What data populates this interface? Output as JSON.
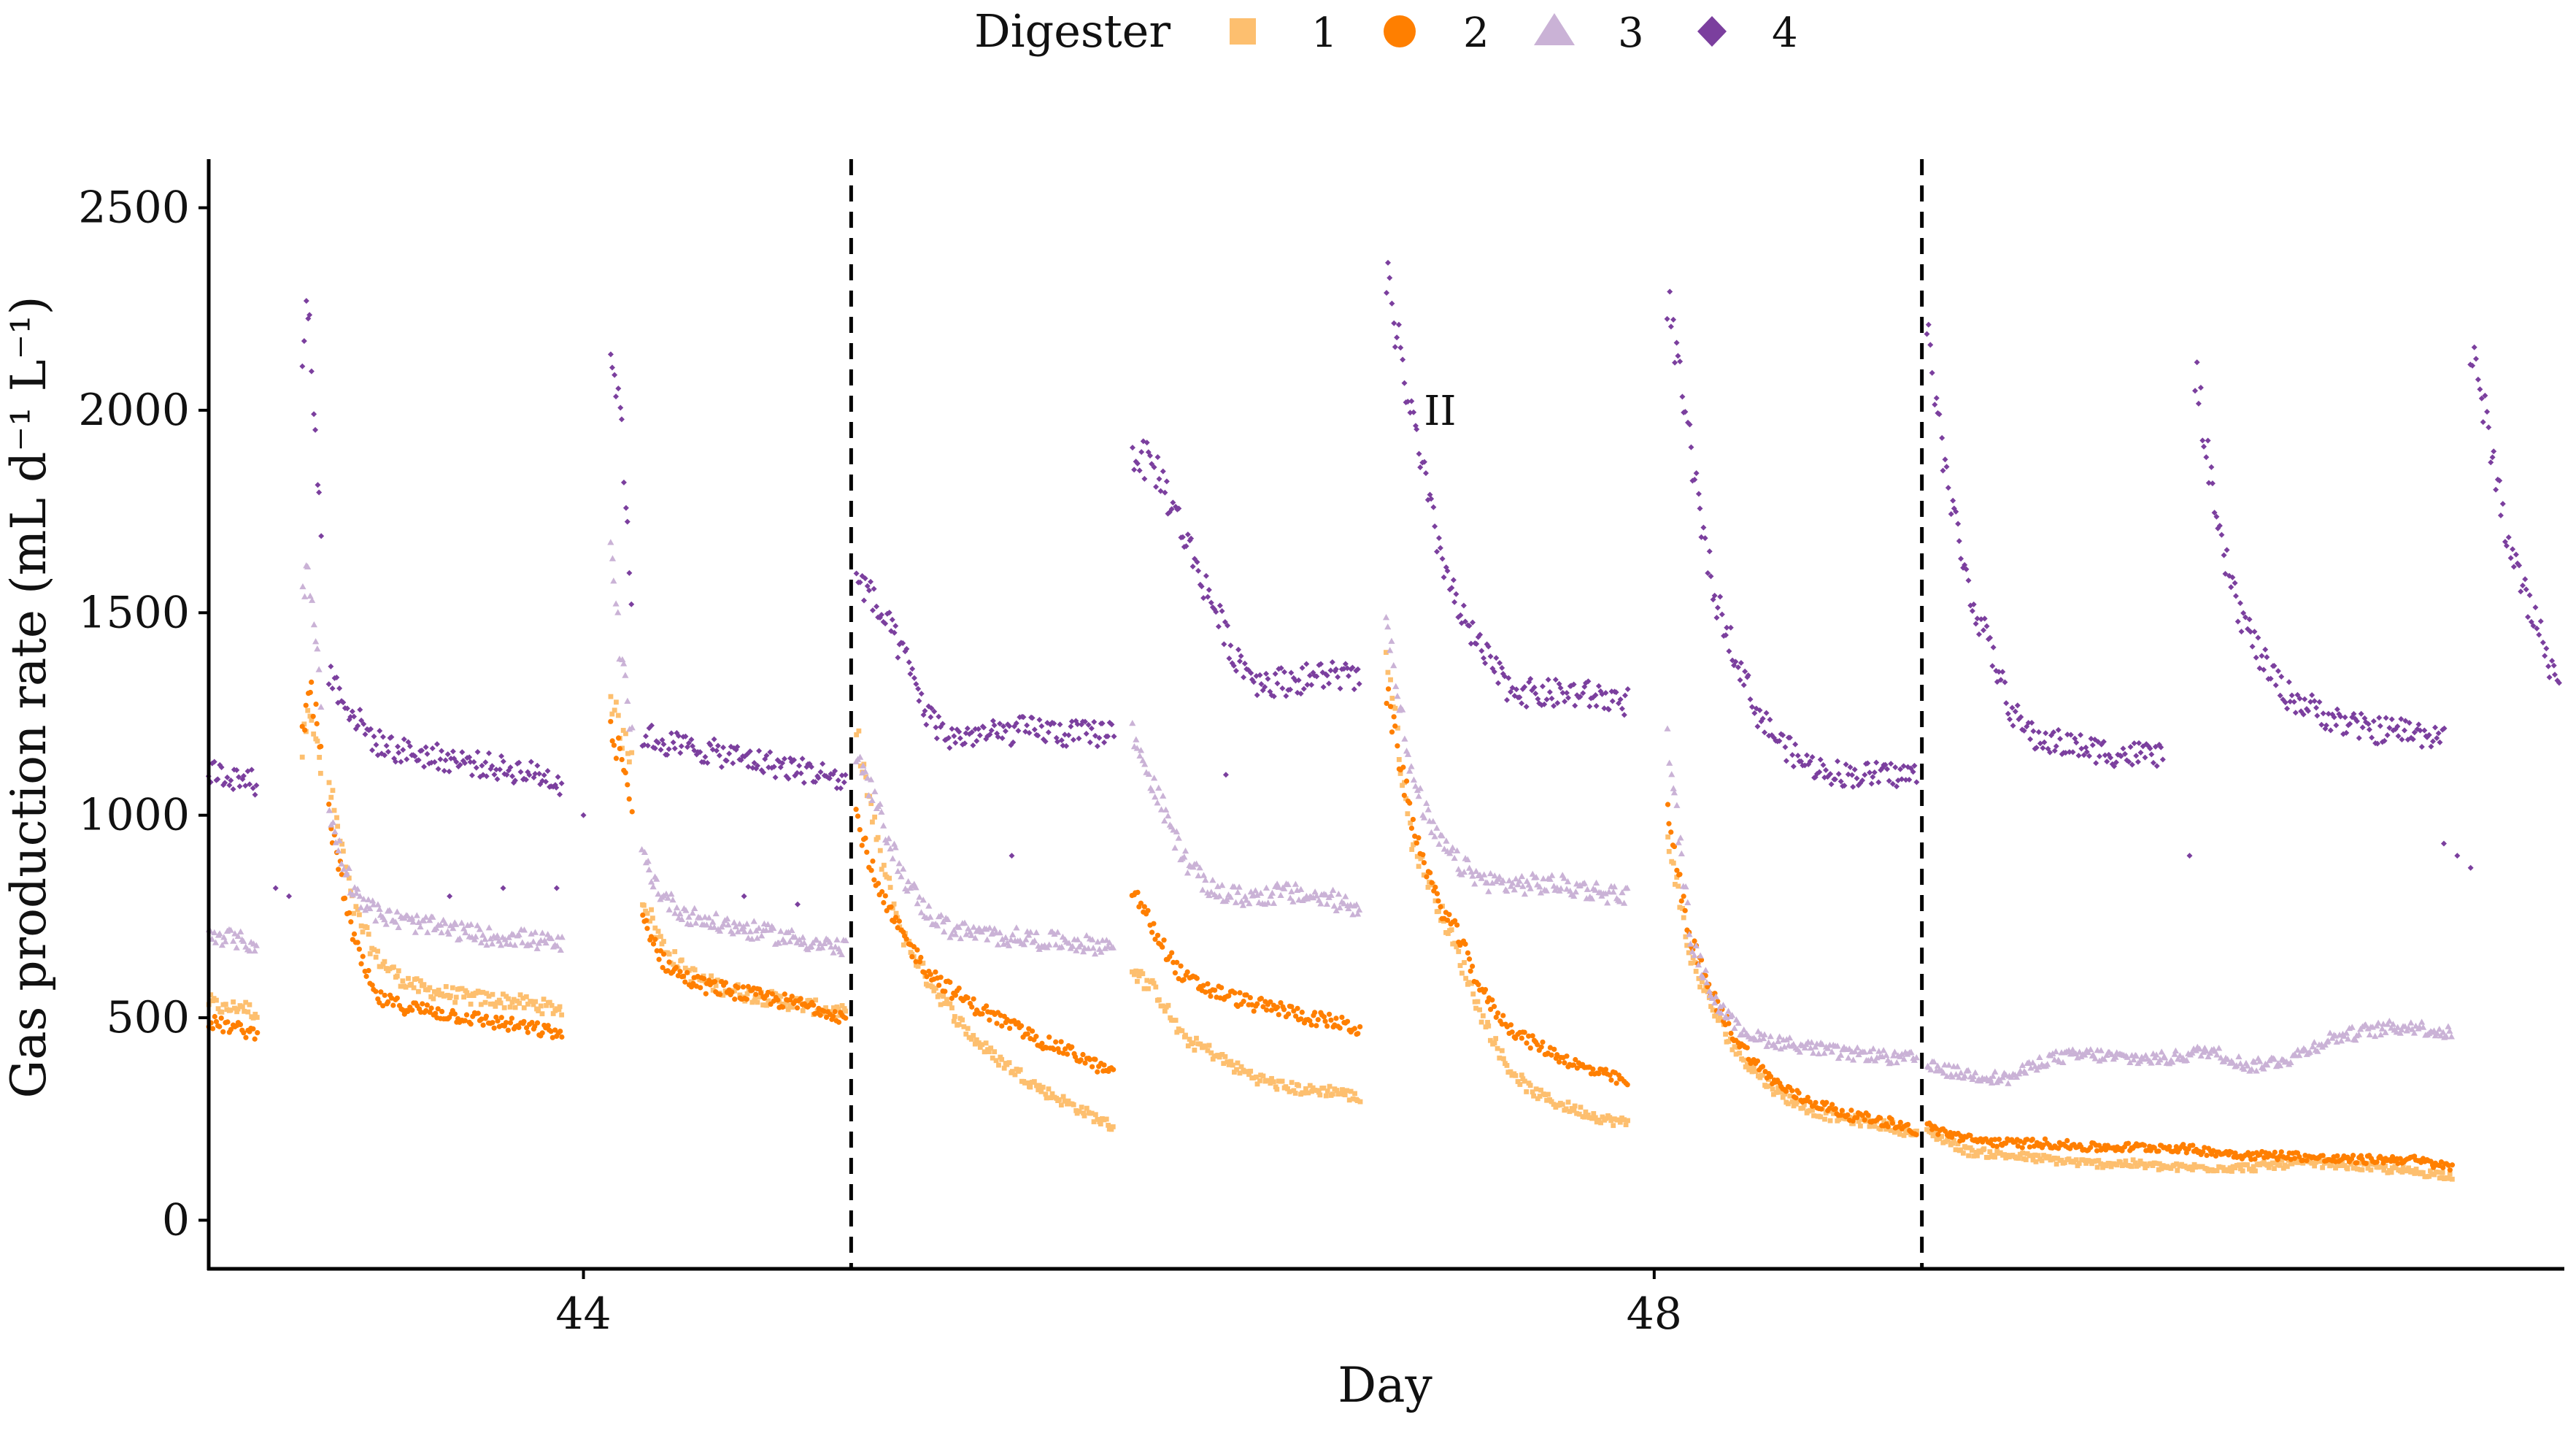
{
  "chart_data": {
    "type": "scatter",
    "title": "",
    "xlabel": "Day",
    "ylabel": "Gas production rate (mL d⁻¹ L⁻¹)",
    "xlim": [
      42.6,
      51.4
    ],
    "ylim": [
      -120,
      2620
    ],
    "xticks": [
      44,
      48
    ],
    "yticks": [
      0,
      500,
      1000,
      1500,
      2000,
      2500
    ],
    "grid": false,
    "legend": {
      "title": "Digester",
      "position": "top"
    },
    "vlines": [
      45.0,
      49.0
    ],
    "annotations": [
      {
        "text": "II",
        "x": 47.2,
        "y": 2000
      }
    ],
    "series": [
      {
        "name": "1",
        "marker": "square",
        "color": "#FDBF6F",
        "segments": [
          {
            "start": 42.6,
            "end": 42.78,
            "values": [
              540,
              520,
              530,
              510
            ]
          },
          {
            "start": 42.95,
            "end": 43.02,
            "values": [
              1150,
              1300,
              1200,
              1100
            ]
          },
          {
            "start": 43.05,
            "end": 43.92,
            "values": [
              1080,
              780,
              650,
              600,
              570,
              560,
              550,
              545,
              540,
              530,
              520
            ]
          },
          {
            "start": 44.1,
            "end": 44.18,
            "values": [
              1300,
              1200,
              1150
            ]
          },
          {
            "start": 44.22,
            "end": 44.98,
            "values": [
              800,
              680,
              620,
              590,
              575,
              560,
              550,
              540,
              530,
              520,
              510
            ]
          },
          {
            "start": 45.02,
            "end": 45.98,
            "values": [
              1200,
              900,
              700,
              600,
              520,
              450,
              400,
              360,
              320,
              290,
              260,
              230
            ]
          },
          {
            "start": 46.05,
            "end": 46.9,
            "values": [
              620,
              560,
              450,
              420,
              380,
              350,
              330,
              320,
              320,
              300
            ]
          },
          {
            "start": 47.0,
            "end": 47.9,
            "values": [
              1400,
              950,
              800,
              650,
              500,
              380,
              320,
              290,
              270,
              250,
              240
            ]
          },
          {
            "start": 48.05,
            "end": 48.98,
            "values": [
              950,
              650,
              520,
              420,
              360,
              310,
              280,
              260,
              250,
              240,
              230,
              210
            ]
          },
          {
            "start": 49.02,
            "end": 50.98,
            "values": [
              220,
              170,
              160,
              150,
              140,
              140,
              130,
              130,
              130,
              140,
              140,
              130,
              120,
              110
            ]
          }
        ]
      },
      {
        "name": "2",
        "marker": "circle",
        "color": "#FF7F00",
        "segments": [
          {
            "start": 42.6,
            "end": 42.78,
            "values": [
              490,
              480,
              470,
              460
            ]
          },
          {
            "start": 42.95,
            "end": 43.02,
            "values": [
              1200,
              1350,
              1250,
              1150
            ]
          },
          {
            "start": 43.05,
            "end": 43.92,
            "values": [
              1000,
              700,
              550,
              530,
              520,
              510,
              500,
              490,
              480,
              470,
              460
            ]
          },
          {
            "start": 44.1,
            "end": 44.18,
            "values": [
              1200,
              1150,
              1000
            ]
          },
          {
            "start": 44.22,
            "end": 44.98,
            "values": [
              750,
              640,
              600,
              580,
              570,
              560,
              550,
              540,
              530,
              520,
              500
            ]
          },
          {
            "start": 45.02,
            "end": 45.98,
            "values": [
              1000,
              800,
              700,
              620,
              570,
              530,
              500,
              470,
              440,
              420,
              390,
              360
            ]
          },
          {
            "start": 46.05,
            "end": 46.9,
            "values": [
              820,
              700,
              600,
              570,
              550,
              530,
              520,
              500,
              490,
              470
            ]
          },
          {
            "start": 47.0,
            "end": 47.9,
            "values": [
              1300,
              1000,
              800,
              700,
              560,
              480,
              440,
              410,
              380,
              360,
              340
            ]
          },
          {
            "start": 48.05,
            "end": 48.98,
            "values": [
              1000,
              700,
              550,
              450,
              380,
              330,
              300,
              280,
              260,
              250,
              240,
              220
            ]
          },
          {
            "start": 49.02,
            "end": 50.98,
            "values": [
              230,
              200,
              190,
              190,
              180,
              180,
              180,
              170,
              160,
              160,
              150,
              150,
              150,
              130
            ]
          }
        ]
      },
      {
        "name": "3",
        "marker": "triangle",
        "color": "#CAB2D6",
        "segments": [
          {
            "start": 42.6,
            "end": 42.78,
            "values": [
              710,
              700,
              690,
              680
            ]
          },
          {
            "start": 42.95,
            "end": 43.02,
            "values": [
              1550,
              1600,
              1450,
              1300
            ]
          },
          {
            "start": 43.05,
            "end": 43.92,
            "values": [
              1000,
              820,
              760,
              740,
              730,
              720,
              710,
              700,
              700,
              690,
              680
            ]
          },
          {
            "start": 44.1,
            "end": 44.18,
            "values": [
              1650,
              1400,
              1200
            ]
          },
          {
            "start": 44.22,
            "end": 44.98,
            "values": [
              900,
              800,
              760,
              740,
              730,
              720,
              710,
              700,
              690,
              680,
              670
            ]
          },
          {
            "start": 45.02,
            "end": 45.98,
            "values": [
              1150,
              1000,
              850,
              760,
              720,
              710,
              700,
              700,
              690,
              690,
              680,
              680
            ]
          },
          {
            "start": 46.05,
            "end": 46.9,
            "values": [
              1200,
              1050,
              900,
              820,
              800,
              800,
              810,
              800,
              790,
              770
            ]
          },
          {
            "start": 47.0,
            "end": 47.9,
            "values": [
              1500,
              1100,
              950,
              880,
              840,
              830,
              830,
              830,
              820,
              810,
              800
            ]
          },
          {
            "start": 48.05,
            "end": 48.98,
            "values": [
              1200,
              700,
              550,
              480,
              450,
              440,
              430,
              420,
              410,
              410,
              400,
              400
            ]
          },
          {
            "start": 49.02,
            "end": 50.98,
            "values": [
              380,
              360,
              350,
              400,
              410,
              400,
              400,
              420,
              380,
              400,
              450,
              470,
              480,
              460
            ]
          }
        ]
      },
      {
        "name": "4",
        "marker": "diamond",
        "color": "#7B3F9E",
        "segments": [
          {
            "start": 42.6,
            "end": 42.78,
            "values": [
              1110,
              1100,
              1090,
              1080
            ]
          },
          {
            "start": 42.95,
            "end": 43.02,
            "values": [
              2150,
              2280,
              1950,
              1700
            ]
          },
          {
            "start": 43.05,
            "end": 43.92,
            "values": [
              1350,
              1250,
              1180,
              1160,
              1150,
              1140,
              1130,
              1120,
              1110,
              1100,
              1080
            ]
          },
          {
            "start": 44.1,
            "end": 44.18,
            "values": [
              2150,
              2000,
              1500
            ]
          },
          {
            "start": 44.22,
            "end": 44.98,
            "values": [
              1200,
              1180,
              1170,
              1160,
              1150,
              1140,
              1130,
              1120,
              1110,
              1100,
              1080
            ]
          },
          {
            "start": 45.02,
            "end": 45.98,
            "values": [
              1600,
              1500,
              1400,
              1250,
              1190,
              1200,
              1200,
              1210,
              1210,
              1200,
              1200,
              1210
            ]
          },
          {
            "start": 46.05,
            "end": 46.9,
            "values": [
              1900,
              1850,
              1700,
              1550,
              1400,
              1330,
              1330,
              1340,
              1350,
              1330
            ]
          },
          {
            "start": 47.0,
            "end": 47.9,
            "values": [
              2330,
              2000,
              1700,
              1500,
              1400,
              1320,
              1300,
              1300,
              1300,
              1290,
              1280
            ]
          },
          {
            "start": 48.05,
            "end": 48.98,
            "values": [
              2280,
              1900,
              1550,
              1400,
              1250,
              1180,
              1130,
              1110,
              1100,
              1100,
              1100,
              1100
            ]
          },
          {
            "start": 49.02,
            "end": 49.9,
            "values": [
              2200,
              1800,
              1550,
              1400,
              1250,
              1190,
              1180,
              1170,
              1160,
              1150,
              1150,
              1150
            ]
          },
          {
            "start": 50.02,
            "end": 50.95,
            "values": [
              2100,
              1700,
              1500,
              1380,
              1300,
              1270,
              1240,
              1220,
              1210,
              1210,
              1200,
              1200
            ]
          },
          {
            "start": 51.05,
            "end": 51.38,
            "values": [
              2150,
              1950,
              1700,
              1550,
              1450,
              1300
            ]
          }
        ],
        "outliers": [
          {
            "x": 42.85,
            "y": 820
          },
          {
            "x": 42.9,
            "y": 800
          },
          {
            "x": 43.5,
            "y": 800
          },
          {
            "x": 43.7,
            "y": 820
          },
          {
            "x": 43.9,
            "y": 820
          },
          {
            "x": 44.0,
            "y": 1000
          },
          {
            "x": 44.6,
            "y": 800
          },
          {
            "x": 44.8,
            "y": 780
          },
          {
            "x": 45.6,
            "y": 900
          },
          {
            "x": 46.4,
            "y": 1100
          },
          {
            "x": 50.0,
            "y": 900
          },
          {
            "x": 50.95,
            "y": 930
          },
          {
            "x": 51.0,
            "y": 900
          },
          {
            "x": 51.05,
            "y": 870
          }
        ]
      }
    ]
  }
}
